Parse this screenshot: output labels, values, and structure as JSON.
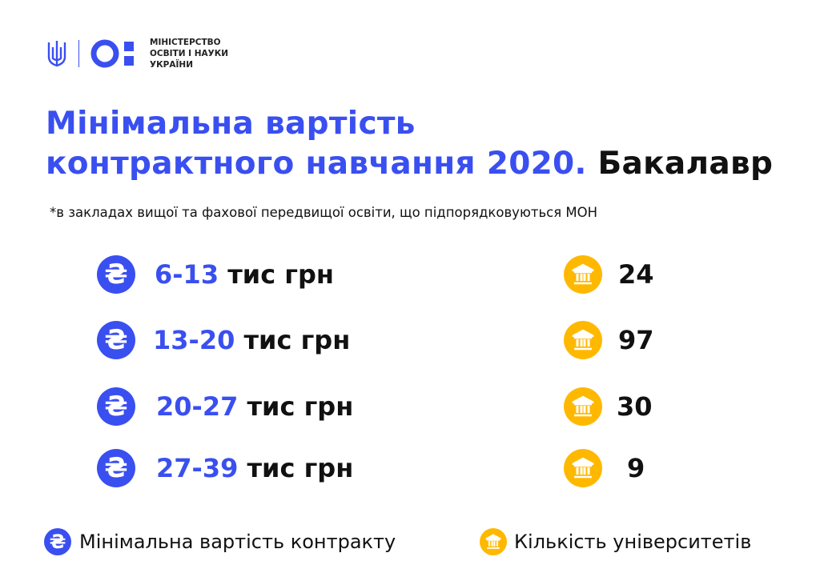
{
  "logo": {
    "org_lines": [
      "МІНІСТЕРСТВО",
      "ОСВІТИ І НАУКИ",
      "УКРАЇНИ"
    ]
  },
  "title": {
    "line1": "Мінімальна вартість",
    "line2_blue": "контрактного навчання 2020.",
    "line2_black": "Бакалавр"
  },
  "subtitle": "*в закладах вищої та фахової передвищої освіти, що підпорядковуються МОН",
  "rows": [
    {
      "range": "6-13",
      "unit": "тис грн",
      "count": "24"
    },
    {
      "range": "13-20",
      "unit": "тис грн",
      "count": "97"
    },
    {
      "range": "20-27",
      "unit": "тис грн",
      "count": "30"
    },
    {
      "range": "27-39",
      "unit": "тис грн",
      "count": "9"
    }
  ],
  "legend": {
    "cost": "Мінімальна вартість контракту",
    "universities": "Кількість університетів"
  },
  "icons": {
    "currency": "hryvnia-icon",
    "university": "university-building-icon"
  },
  "colors": {
    "accent": "#3a4ff0",
    "university": "#ffb800"
  }
}
